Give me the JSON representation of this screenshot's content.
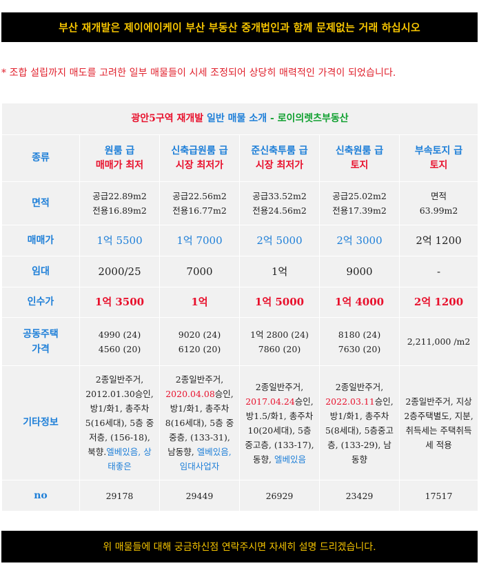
{
  "top_banner": "부산 재개발은 제이에이케이 부산 부동산 중개법인과 함께 문제없는 거래 하십시오",
  "notice": "* 조합 설립까지 매도를 고려한 일부 매물들이 시세 조정되어 상당히 매력적인 가격이 되었습니다.",
  "table": {
    "title": {
      "part1": "광안5구역 재개발",
      "part2": " 일반 매물 소개 ",
      "part3": "- 로이의렛츠부동산"
    },
    "labels": {
      "type": "종류",
      "area": "면적",
      "sale_price": "매매가",
      "rent": "임대",
      "takeover": "인수가",
      "apt_price": "공동주택\n가격",
      "info": "기타정보",
      "no": "no"
    },
    "listings": [
      {
        "type_line1": "원룸 급",
        "type_line2": "매매가 최저",
        "area_line1": "공급22.89m2",
        "area_line2": "전용16.89m2",
        "sale_price": "1억 5500",
        "rent": "2000/25",
        "takeover": "1억 3500",
        "apt_line1": "4990 (24)",
        "apt_line2": "4560 (20)",
        "info_pre": "2종일반주거, 2012.01.30승인, 방1/화1, 총주차5(16세대), 5층 중저층, (156-18), 북향.",
        "info_date": "",
        "info_mid": "",
        "info_blue": "엘베있음, 상태좋은",
        "no": "29178"
      },
      {
        "type_line1": "신축급원룸 급",
        "type_line2": "시장 최저가",
        "area_line1": "공급22.56m2",
        "area_line2": "전용16.77m2",
        "sale_price": "1억 7000",
        "rent": "7000",
        "takeover": "1억",
        "apt_line1": "9020 (24)",
        "apt_line2": "6120 (20)",
        "info_pre": "2종일반주거, ",
        "info_date": "2020.04.08",
        "info_mid": "승인, 방1/화1, 총주차8(16세대), 5층 중중층, (133-31), 남동향, ",
        "info_blue": "엘베있음,임대사업자",
        "no": "29449"
      },
      {
        "type_line1": "준신축투룸 급",
        "type_line2": "시장 최저가",
        "area_line1": "공급33.52m2",
        "area_line2": "전용24.56m2",
        "sale_price": "2억 5000",
        "rent": "1억",
        "takeover": "1억 5000",
        "apt_line1": "1억 2800 (24)",
        "apt_line2": "7860 (20)",
        "info_pre": "2종일반주거, ",
        "info_date": "2017.04.24",
        "info_mid": "승인, 방1.5/화1, 총주차10(20세대), 5층중고층, (133-17),동향, ",
        "info_blue": "엘베있음",
        "no": "26929"
      },
      {
        "type_line1": "신축원룸 급",
        "type_line2": "토지",
        "area_line1": "공급25.02m2",
        "area_line2": "전용17.39m2",
        "sale_price": "2억 3000",
        "rent": "9000",
        "takeover": "1억 4000",
        "apt_line1": "8180 (24)",
        "apt_line2": "7630 (20)",
        "info_pre": "2종일반주거, ",
        "info_date": "2022.03.11",
        "info_mid": "승인, 방1/화1, 총주차5(8세대), 5층중고층, (133-29), 남동향",
        "info_blue": "",
        "no": "23429"
      },
      {
        "type_line1": "부속토지 급",
        "type_line2": "토지",
        "area_line1": "면적",
        "area_line2": "63.99m2",
        "sale_price": "2억 1200",
        "rent": "-",
        "takeover": "2억 1200",
        "apt_line1": "2,211,000 /m2",
        "apt_line2": "",
        "info_pre": "2종일반주거, 지상2층주택별도, 지분, 취득세는 주택취득세 적용",
        "info_date": "",
        "info_mid": "",
        "info_blue": "",
        "no": "17517"
      }
    ]
  },
  "bottom_banner": "위 매물들에 대해 궁금하신점 연락주시면 자세히 설명 드리겠습니다.",
  "colors": {
    "banner_bg": "#000000",
    "banner_text": "#f5c400",
    "notice_red": "#e0202c",
    "label_blue": "#1e7fd8",
    "highlight_green": "#d0f0bd",
    "accent_red": "#e8102c"
  }
}
